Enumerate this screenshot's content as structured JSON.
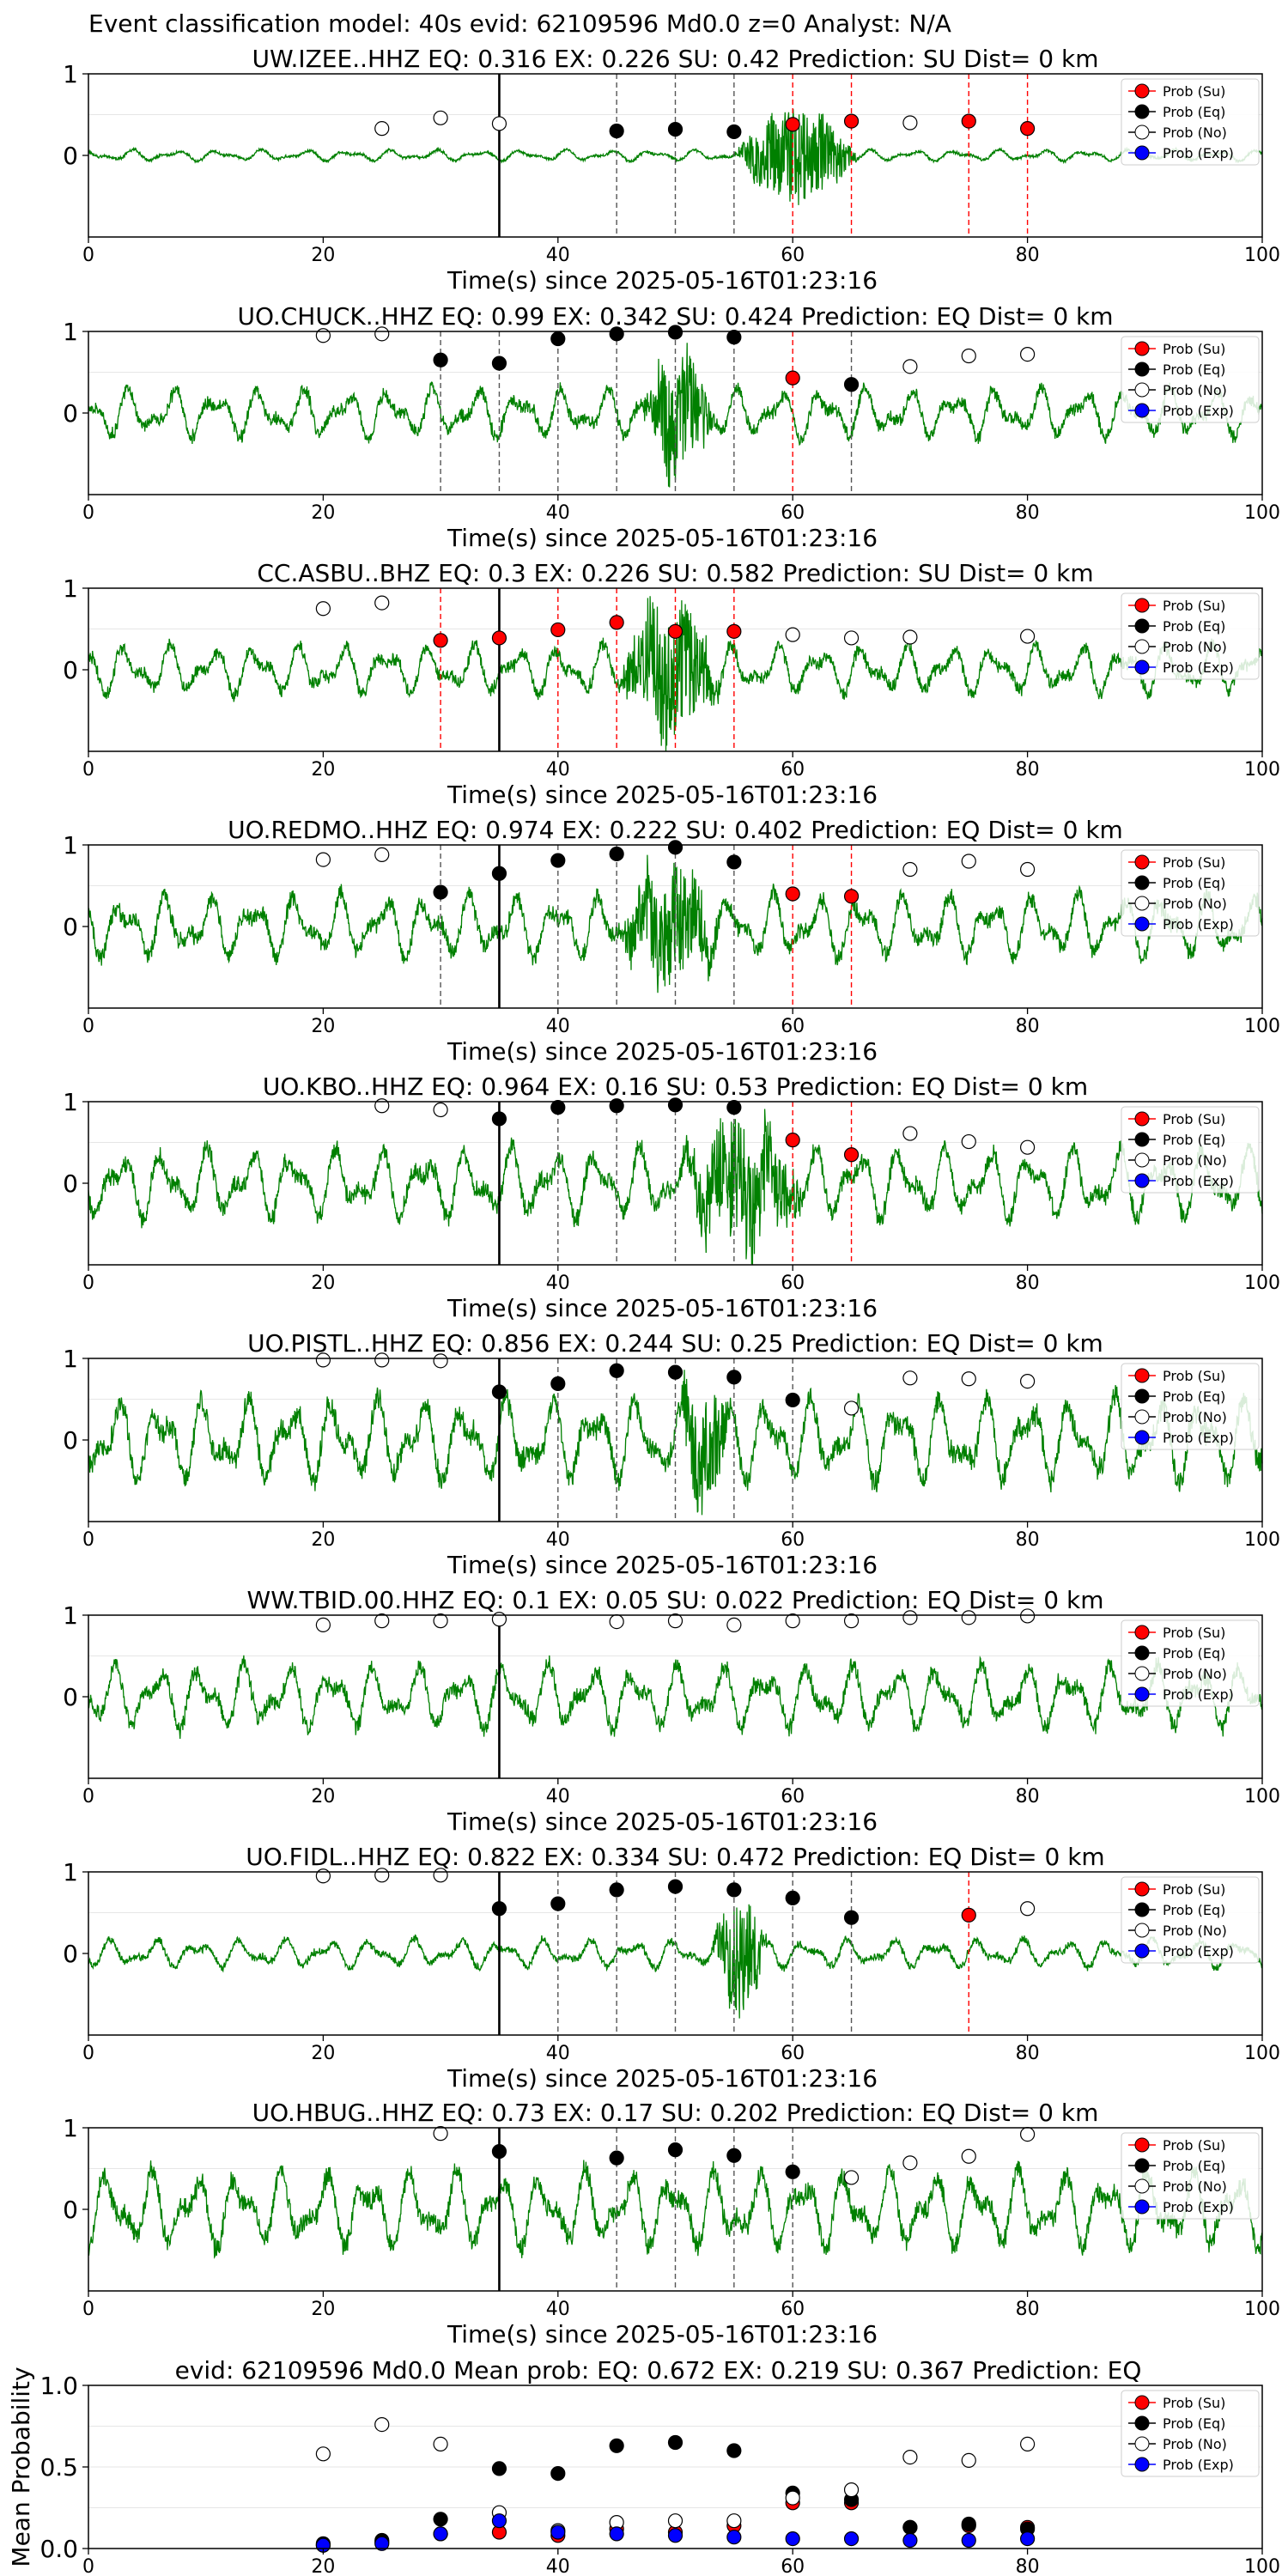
{
  "suptitle": "Event classification model: 40s evid: 62109596 Md0.0 z=0 Analyst: N/A",
  "colors": {
    "trace": "#008000",
    "su": "#ff0000",
    "eq": "#000000",
    "no": "#ffffff",
    "exp": "#0000ff",
    "pick": "#000000"
  },
  "legend_labels": [
    "Prob (Su)",
    "Prob (Eq)",
    "Prob (No)",
    "Prob (Exp)"
  ],
  "chart_data": [
    {
      "type": "line",
      "title": "UW.IZEE..HHZ   EQ: 0.316  EX: 0.226  SU: 0.42   Prediction: SU    Dist= 0 km",
      "xlabel": "Time(s) since 2025-05-16T01:23:16",
      "xlim": [
        0,
        100
      ],
      "ylim": [
        -1,
        1
      ],
      "xticks": [
        0,
        20,
        40,
        60,
        80,
        100
      ],
      "yticks": [
        0,
        1
      ],
      "grid": true,
      "legend": "top-right",
      "pick_time": 35,
      "trace": {
        "noise_amp": 0.08,
        "event_start": 55,
        "event_end": 70,
        "event_amp": 0.6
      },
      "probs": [
        {
          "x": 25,
          "y": 0.33,
          "cls": "no"
        },
        {
          "x": 30,
          "y": 0.46,
          "cls": "no"
        },
        {
          "x": 35,
          "y": 0.39,
          "cls": "no"
        },
        {
          "x": 45,
          "y": 0.3,
          "cls": "eq"
        },
        {
          "x": 50,
          "y": 0.32,
          "cls": "eq"
        },
        {
          "x": 55,
          "y": 0.29,
          "cls": "eq"
        },
        {
          "x": 60,
          "y": 0.38,
          "cls": "su"
        },
        {
          "x": 65,
          "y": 0.42,
          "cls": "su"
        },
        {
          "x": 70,
          "y": 0.4,
          "cls": "no"
        },
        {
          "x": 75,
          "y": 0.42,
          "cls": "su"
        },
        {
          "x": 80,
          "y": 0.33,
          "cls": "su"
        }
      ]
    },
    {
      "type": "line",
      "title": "UO.CHUCK..HHZ   EQ: 0.99  EX: 0.342  SU: 0.424   Prediction: EQ    Dist= 0 km",
      "xlabel": "Time(s) since 2025-05-16T01:23:16",
      "xlim": [
        0,
        100
      ],
      "ylim": [
        -1,
        1
      ],
      "xticks": [
        0,
        20,
        40,
        60,
        80,
        100
      ],
      "yticks": [
        0,
        1
      ],
      "grid": true,
      "legend": "top-right",
      "pick_time": null,
      "trace": {
        "noise_amp": 0.35,
        "event_start": 47,
        "event_end": 56,
        "event_amp": 0.7
      },
      "probs": [
        {
          "x": 20,
          "y": 0.95,
          "cls": "no"
        },
        {
          "x": 25,
          "y": 0.97,
          "cls": "no"
        },
        {
          "x": 30,
          "y": 0.65,
          "cls": "eq"
        },
        {
          "x": 35,
          "y": 0.61,
          "cls": "eq"
        },
        {
          "x": 40,
          "y": 0.91,
          "cls": "eq"
        },
        {
          "x": 45,
          "y": 0.97,
          "cls": "eq"
        },
        {
          "x": 50,
          "y": 0.99,
          "cls": "eq"
        },
        {
          "x": 55,
          "y": 0.93,
          "cls": "eq"
        },
        {
          "x": 60,
          "y": 0.43,
          "cls": "su"
        },
        {
          "x": 65,
          "y": 0.35,
          "cls": "eq"
        },
        {
          "x": 70,
          "y": 0.57,
          "cls": "no"
        },
        {
          "x": 75,
          "y": 0.7,
          "cls": "no"
        },
        {
          "x": 80,
          "y": 0.72,
          "cls": "no"
        }
      ]
    },
    {
      "type": "line",
      "title": "CC.ASBU..BHZ   EQ: 0.3  EX: 0.226  SU: 0.582   Prediction: SU    Dist= 0 km",
      "xlabel": "Time(s) since 2025-05-16T01:23:16",
      "xlim": [
        0,
        100
      ],
      "ylim": [
        -1,
        1
      ],
      "xticks": [
        0,
        20,
        40,
        60,
        80,
        100
      ],
      "yticks": [
        0,
        1
      ],
      "grid": true,
      "legend": "top-right",
      "pick_time": 35,
      "trace": {
        "noise_amp": 0.35,
        "event_start": 45,
        "event_end": 58,
        "event_amp": 0.8
      },
      "probs": [
        {
          "x": 20,
          "y": 0.75,
          "cls": "no"
        },
        {
          "x": 25,
          "y": 0.82,
          "cls": "no"
        },
        {
          "x": 30,
          "y": 0.36,
          "cls": "su"
        },
        {
          "x": 35,
          "y": 0.39,
          "cls": "su"
        },
        {
          "x": 40,
          "y": 0.49,
          "cls": "su"
        },
        {
          "x": 45,
          "y": 0.58,
          "cls": "su"
        },
        {
          "x": 50,
          "y": 0.47,
          "cls": "su"
        },
        {
          "x": 55,
          "y": 0.47,
          "cls": "su"
        },
        {
          "x": 60,
          "y": 0.43,
          "cls": "no"
        },
        {
          "x": 65,
          "y": 0.39,
          "cls": "no"
        },
        {
          "x": 70,
          "y": 0.4,
          "cls": "no"
        },
        {
          "x": 80,
          "y": 0.41,
          "cls": "no"
        }
      ]
    },
    {
      "type": "line",
      "title": "UO.REDMO..HHZ   EQ: 0.974  EX: 0.222  SU: 0.402   Prediction: EQ    Dist= 0 km",
      "xlabel": "Time(s) since 2025-05-16T01:23:16",
      "xlim": [
        0,
        100
      ],
      "ylim": [
        -1,
        1
      ],
      "xticks": [
        0,
        20,
        40,
        60,
        80,
        100
      ],
      "yticks": [
        0,
        1
      ],
      "grid": true,
      "legend": "top-right",
      "pick_time": 35,
      "trace": {
        "noise_amp": 0.45,
        "event_start": 45,
        "event_end": 58,
        "event_amp": 0.7
      },
      "probs": [
        {
          "x": 20,
          "y": 0.82,
          "cls": "no"
        },
        {
          "x": 25,
          "y": 0.88,
          "cls": "no"
        },
        {
          "x": 30,
          "y": 0.42,
          "cls": "eq"
        },
        {
          "x": 35,
          "y": 0.65,
          "cls": "eq"
        },
        {
          "x": 40,
          "y": 0.81,
          "cls": "eq"
        },
        {
          "x": 45,
          "y": 0.89,
          "cls": "eq"
        },
        {
          "x": 50,
          "y": 0.97,
          "cls": "eq"
        },
        {
          "x": 55,
          "y": 0.79,
          "cls": "eq"
        },
        {
          "x": 60,
          "y": 0.4,
          "cls": "su"
        },
        {
          "x": 65,
          "y": 0.37,
          "cls": "su"
        },
        {
          "x": 70,
          "y": 0.7,
          "cls": "no"
        },
        {
          "x": 75,
          "y": 0.8,
          "cls": "no"
        },
        {
          "x": 80,
          "y": 0.7,
          "cls": "no"
        }
      ]
    },
    {
      "type": "line",
      "title": "UO.KBO..HHZ   EQ: 0.964  EX: 0.16  SU: 0.53   Prediction: EQ    Dist= 0 km",
      "xlabel": "Time(s) since 2025-05-16T01:23:16",
      "xlim": [
        0,
        100
      ],
      "ylim": [
        -1,
        1
      ],
      "xticks": [
        0,
        20,
        40,
        60,
        80,
        100
      ],
      "yticks": [
        0,
        1
      ],
      "grid": true,
      "legend": "top-right",
      "pick_time": 35,
      "trace": {
        "noise_amp": 0.5,
        "event_start": 50,
        "event_end": 66,
        "event_amp": 0.7
      },
      "probs": [
        {
          "x": 25,
          "y": 0.95,
          "cls": "no"
        },
        {
          "x": 30,
          "y": 0.9,
          "cls": "no"
        },
        {
          "x": 35,
          "y": 0.79,
          "cls": "eq"
        },
        {
          "x": 40,
          "y": 0.93,
          "cls": "eq"
        },
        {
          "x": 45,
          "y": 0.95,
          "cls": "eq"
        },
        {
          "x": 50,
          "y": 0.96,
          "cls": "eq"
        },
        {
          "x": 55,
          "y": 0.93,
          "cls": "eq"
        },
        {
          "x": 60,
          "y": 0.53,
          "cls": "su"
        },
        {
          "x": 65,
          "y": 0.35,
          "cls": "su"
        },
        {
          "x": 70,
          "y": 0.61,
          "cls": "no"
        },
        {
          "x": 75,
          "y": 0.51,
          "cls": "no"
        },
        {
          "x": 80,
          "y": 0.44,
          "cls": "no"
        }
      ]
    },
    {
      "type": "line",
      "title": "UO.PISTL..HHZ   EQ: 0.856  EX: 0.244  SU: 0.25   Prediction: EQ    Dist= 0 km",
      "xlabel": "Time(s) since 2025-05-16T01:23:16",
      "xlim": [
        0,
        100
      ],
      "ylim": [
        -1,
        1
      ],
      "xticks": [
        0,
        20,
        40,
        60,
        80,
        100
      ],
      "yticks": [
        0,
        1
      ],
      "grid": true,
      "legend": "top-right",
      "pick_time": 35,
      "trace": {
        "noise_amp": 0.6,
        "event_start": 50,
        "event_end": 57,
        "event_amp": 0.7
      },
      "probs": [
        {
          "x": 20,
          "y": 0.98,
          "cls": "no"
        },
        {
          "x": 25,
          "y": 0.98,
          "cls": "no"
        },
        {
          "x": 30,
          "y": 0.97,
          "cls": "no"
        },
        {
          "x": 35,
          "y": 0.59,
          "cls": "eq"
        },
        {
          "x": 40,
          "y": 0.69,
          "cls": "eq"
        },
        {
          "x": 45,
          "y": 0.85,
          "cls": "eq"
        },
        {
          "x": 50,
          "y": 0.83,
          "cls": "eq"
        },
        {
          "x": 55,
          "y": 0.77,
          "cls": "eq"
        },
        {
          "x": 60,
          "y": 0.49,
          "cls": "eq"
        },
        {
          "x": 65,
          "y": 0.39,
          "cls": "no"
        },
        {
          "x": 70,
          "y": 0.76,
          "cls": "no"
        },
        {
          "x": 75,
          "y": 0.75,
          "cls": "no"
        },
        {
          "x": 80,
          "y": 0.72,
          "cls": "no"
        }
      ]
    },
    {
      "type": "line",
      "title": "WW.TBID.00.HHZ   EQ: 0.1  EX: 0.05  SU: 0.022   Prediction: EQ    Dist= 0 km",
      "xlabel": "Time(s) since 2025-05-16T01:23:16",
      "xlim": [
        0,
        100
      ],
      "ylim": [
        -1,
        1
      ],
      "xticks": [
        0,
        20,
        40,
        60,
        80,
        100
      ],
      "yticks": [
        0,
        1
      ],
      "grid": true,
      "legend": "top-right",
      "pick_time": 35,
      "trace": {
        "noise_amp": 0.45,
        "event_start": 0,
        "event_end": 0,
        "event_amp": 0
      },
      "probs": [
        {
          "x": 20,
          "y": 0.88,
          "cls": "no"
        },
        {
          "x": 25,
          "y": 0.93,
          "cls": "no"
        },
        {
          "x": 30,
          "y": 0.93,
          "cls": "no"
        },
        {
          "x": 35,
          "y": 0.95,
          "cls": "no"
        },
        {
          "x": 45,
          "y": 0.92,
          "cls": "no"
        },
        {
          "x": 50,
          "y": 0.93,
          "cls": "no"
        },
        {
          "x": 55,
          "y": 0.88,
          "cls": "no"
        },
        {
          "x": 60,
          "y": 0.93,
          "cls": "no"
        },
        {
          "x": 65,
          "y": 0.93,
          "cls": "no"
        },
        {
          "x": 70,
          "y": 0.97,
          "cls": "no"
        },
        {
          "x": 75,
          "y": 0.97,
          "cls": "no"
        },
        {
          "x": 80,
          "y": 0.99,
          "cls": "no"
        }
      ]
    },
    {
      "type": "line",
      "title": "UO.FIDL..HHZ   EQ: 0.822  EX: 0.334  SU: 0.472   Prediction: EQ    Dist= 0 km",
      "xlabel": "Time(s) since 2025-05-16T01:23:16",
      "xlim": [
        0,
        100
      ],
      "ylim": [
        -1,
        1
      ],
      "xticks": [
        0,
        20,
        40,
        60,
        80,
        100
      ],
      "yticks": [
        0,
        1
      ],
      "grid": true,
      "legend": "top-right",
      "pick_time": 35,
      "trace": {
        "noise_amp": 0.2,
        "event_start": 53,
        "event_end": 60,
        "event_amp": 0.7
      },
      "probs": [
        {
          "x": 20,
          "y": 0.95,
          "cls": "no"
        },
        {
          "x": 25,
          "y": 0.96,
          "cls": "no"
        },
        {
          "x": 30,
          "y": 0.96,
          "cls": "no"
        },
        {
          "x": 35,
          "y": 0.55,
          "cls": "eq"
        },
        {
          "x": 40,
          "y": 0.61,
          "cls": "eq"
        },
        {
          "x": 45,
          "y": 0.78,
          "cls": "eq"
        },
        {
          "x": 50,
          "y": 0.82,
          "cls": "eq"
        },
        {
          "x": 55,
          "y": 0.78,
          "cls": "eq"
        },
        {
          "x": 60,
          "y": 0.68,
          "cls": "eq"
        },
        {
          "x": 65,
          "y": 0.44,
          "cls": "eq"
        },
        {
          "x": 75,
          "y": 0.47,
          "cls": "su"
        },
        {
          "x": 80,
          "y": 0.55,
          "cls": "no"
        }
      ]
    },
    {
      "type": "line",
      "title": "UO.HBUG..HHZ   EQ: 0.73  EX: 0.17  SU: 0.202   Prediction: EQ    Dist= 0 km",
      "xlabel": "Time(s) since 2025-05-16T01:23:16",
      "xlim": [
        0,
        100
      ],
      "ylim": [
        -1,
        1
      ],
      "xticks": [
        0,
        20,
        40,
        60,
        80,
        100
      ],
      "yticks": [
        0,
        1
      ],
      "grid": true,
      "legend": "top-right",
      "pick_time": 35,
      "trace": {
        "noise_amp": 0.55,
        "event_start": 0,
        "event_end": 0,
        "event_amp": 0
      },
      "probs": [
        {
          "x": 30,
          "y": 0.93,
          "cls": "no"
        },
        {
          "x": 35,
          "y": 0.71,
          "cls": "eq"
        },
        {
          "x": 45,
          "y": 0.63,
          "cls": "eq"
        },
        {
          "x": 50,
          "y": 0.73,
          "cls": "eq"
        },
        {
          "x": 55,
          "y": 0.66,
          "cls": "eq"
        },
        {
          "x": 60,
          "y": 0.46,
          "cls": "eq"
        },
        {
          "x": 65,
          "y": 0.39,
          "cls": "no"
        },
        {
          "x": 70,
          "y": 0.57,
          "cls": "no"
        },
        {
          "x": 75,
          "y": 0.65,
          "cls": "no"
        },
        {
          "x": 80,
          "y": 0.92,
          "cls": "no"
        }
      ]
    },
    {
      "type": "scatter",
      "title": "evid: 62109596  Md0.0    Mean prob:    EQ: 0.672  EX: 0.219  SU: 0.367   Prediction: EQ",
      "ylabel": "Mean Probability",
      "xlim": [
        0,
        100
      ],
      "ylim": [
        0,
        1
      ],
      "xticks": [
        0,
        20,
        40,
        60,
        80,
        100
      ],
      "yticks": [
        0.0,
        0.5,
        1.0
      ],
      "grid": true,
      "legend": "top-right",
      "series": [
        {
          "name": "Prob (Su)",
          "cls": "su",
          "x": [
            20,
            25,
            30,
            35,
            40,
            45,
            50,
            55,
            60,
            65,
            70,
            75,
            80
          ],
          "y": [
            0.02,
            0.04,
            0.09,
            0.1,
            0.08,
            0.12,
            0.1,
            0.14,
            0.28,
            0.28,
            0.13,
            0.14,
            0.13
          ]
        },
        {
          "name": "Prob (Eq)",
          "cls": "eq",
          "x": [
            20,
            25,
            30,
            35,
            40,
            45,
            50,
            55,
            60,
            65,
            70,
            75,
            80
          ],
          "y": [
            0.03,
            0.05,
            0.18,
            0.49,
            0.46,
            0.63,
            0.65,
            0.6,
            0.34,
            0.3,
            0.13,
            0.15,
            0.12
          ]
        },
        {
          "name": "Prob (No)",
          "cls": "no",
          "x": [
            20,
            25,
            30,
            35,
            40,
            45,
            50,
            55,
            60,
            65,
            70,
            75,
            80
          ],
          "y": [
            0.58,
            0.76,
            0.64,
            0.22,
            0.11,
            0.16,
            0.17,
            0.17,
            0.31,
            0.36,
            0.56,
            0.54,
            0.64
          ]
        },
        {
          "name": "Prob (Exp)",
          "cls": "exp",
          "x": [
            20,
            25,
            30,
            35,
            40,
            45,
            50,
            55,
            60,
            65,
            70,
            75,
            80
          ],
          "y": [
            0.02,
            0.03,
            0.09,
            0.17,
            0.1,
            0.09,
            0.08,
            0.07,
            0.06,
            0.06,
            0.05,
            0.05,
            0.06
          ]
        }
      ]
    }
  ]
}
